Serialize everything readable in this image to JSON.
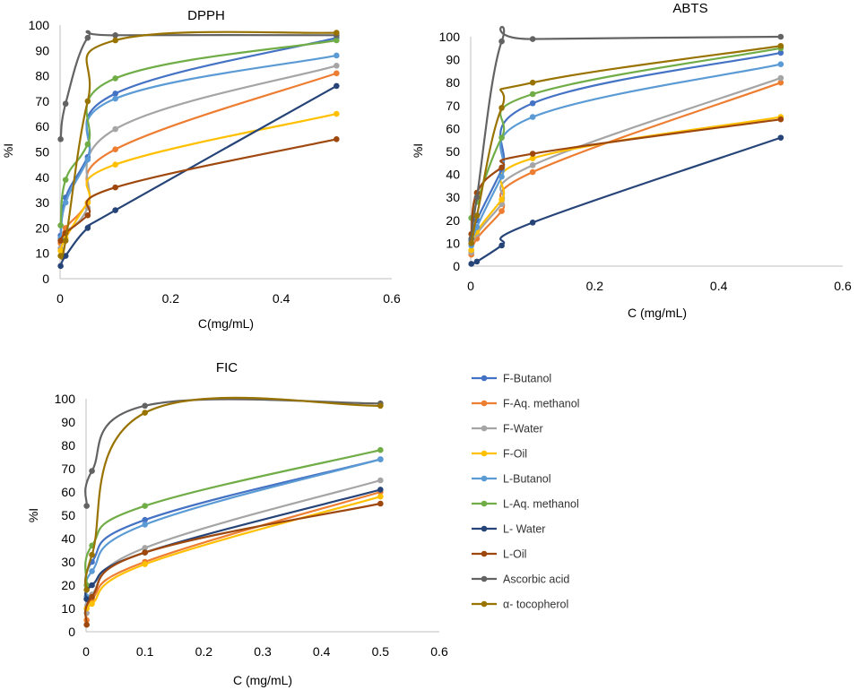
{
  "chart_data": [
    {
      "type": "scatter-smooth",
      "title": "DPPH",
      "xlabel": "C(mg/mL)",
      "ylabel": "%I",
      "xlim": [
        0,
        0.6
      ],
      "ylim": [
        0,
        100
      ],
      "xticks": [
        "0",
        "0.2",
        "0.4",
        "0.6"
      ],
      "yticks": [
        "0",
        "10",
        "20",
        "30",
        "40",
        "50",
        "60",
        "70",
        "80",
        "90",
        "100"
      ],
      "x": [
        0.001,
        0.01,
        0.05,
        0.1,
        0.5
      ],
      "series": [
        {
          "name": "F-Butanol",
          "values": [
            17,
            32,
            48,
            73,
            95
          ]
        },
        {
          "name": "F-Aq. methanol",
          "values": [
            14,
            20,
            30,
            51,
            81
          ]
        },
        {
          "name": "F-Water",
          "values": [
            12,
            18,
            28,
            59,
            84
          ]
        },
        {
          "name": "F-Oil",
          "values": [
            11,
            16,
            30,
            45,
            65
          ]
        },
        {
          "name": "L-Butanol",
          "values": [
            16,
            30,
            47,
            71,
            88
          ]
        },
        {
          "name": "L-Aq. methanol",
          "values": [
            21,
            39,
            53,
            79,
            94
          ]
        },
        {
          "name": "L- Water",
          "values": [
            5,
            9,
            20,
            27,
            76
          ]
        },
        {
          "name": "L-Oil",
          "values": [
            15,
            18,
            25,
            36,
            55
          ]
        },
        {
          "name": "Ascorbic acid",
          "values": [
            55,
            69,
            95,
            96,
            96
          ]
        },
        {
          "name": "α- tocopherol",
          "values": [
            9,
            15,
            70,
            94,
            97
          ]
        }
      ]
    },
    {
      "type": "scatter-smooth",
      "title": "ABTS",
      "xlabel": "C (mg/mL)",
      "ylabel": "%I",
      "xlim": [
        0,
        0.6
      ],
      "ylim": [
        0,
        100
      ],
      "xticks": [
        "0",
        "0.2",
        "0.4",
        "0.6"
      ],
      "yticks": [
        "0",
        "10",
        "20",
        "30",
        "40",
        "50",
        "60",
        "70",
        "80",
        "90",
        "100"
      ],
      "x": [
        0.001,
        0.01,
        0.05,
        0.1,
        0.5
      ],
      "series": [
        {
          "name": "F-Butanol",
          "values": [
            11,
            20,
            42,
            71,
            93
          ]
        },
        {
          "name": "F-Aq. methanol",
          "values": [
            5,
            12,
            24,
            41,
            80
          ]
        },
        {
          "name": "F-Water",
          "values": [
            6,
            14,
            27,
            44,
            82
          ]
        },
        {
          "name": "F-Oil",
          "values": [
            7,
            15,
            29,
            47,
            65
          ]
        },
        {
          "name": "L-Butanol",
          "values": [
            9,
            17,
            39,
            65,
            88
          ]
        },
        {
          "name": "L-Aq. methanol",
          "values": [
            21,
            28,
            56,
            75,
            95
          ]
        },
        {
          "name": "L- Water",
          "values": [
            1,
            2,
            9,
            19,
            56
          ]
        },
        {
          "name": "L-Oil",
          "values": [
            14,
            32,
            43,
            49,
            64
          ]
        },
        {
          "name": "Ascorbic acid",
          "values": [
            12,
            30,
            98,
            99,
            100
          ]
        },
        {
          "name": "α- tocopherol",
          "values": [
            10,
            22,
            69,
            80,
            96
          ]
        }
      ]
    },
    {
      "type": "scatter-smooth",
      "title": "FIC",
      "xlabel": "C (mg/mL)",
      "ylabel": "%I",
      "xlim": [
        0,
        0.6
      ],
      "ylim": [
        0,
        100
      ],
      "xticks": [
        "0",
        "0.1",
        "0.2",
        "0.3",
        "0.4",
        "0.5",
        "0.6"
      ],
      "yticks": [
        "0",
        "10",
        "20",
        "30",
        "40",
        "50",
        "60",
        "70",
        "80",
        "90",
        "100"
      ],
      "x": [
        0.001,
        0.01,
        0.1,
        0.5
      ],
      "series": [
        {
          "name": "F-Butanol",
          "values": [
            14,
            30,
            48,
            74
          ]
        },
        {
          "name": "F-Aq. methanol",
          "values": [
            5,
            14,
            30,
            60
          ]
        },
        {
          "name": "F-Water",
          "values": [
            8,
            16,
            36,
            65
          ]
        },
        {
          "name": "F-Oil",
          "values": [
            10,
            12,
            29,
            58
          ]
        },
        {
          "name": "L-Butanol",
          "values": [
            15,
            26,
            46,
            74
          ]
        },
        {
          "name": "L-Aq. methanol",
          "values": [
            20,
            37,
            54,
            78
          ]
        },
        {
          "name": "L- Water",
          "values": [
            14,
            20,
            34,
            61
          ]
        },
        {
          "name": "L-Oil",
          "values": [
            3,
            15,
            34,
            55
          ]
        },
        {
          "name": "Ascorbic acid",
          "values": [
            54,
            69,
            97,
            98
          ]
        },
        {
          "name": "α- tocopherol",
          "values": [
            18,
            33,
            94,
            97
          ]
        }
      ]
    }
  ],
  "legend": {
    "entries": [
      "F-Butanol",
      "F-Aq. methanol",
      "F-Water",
      "F-Oil",
      "L-Butanol",
      "L-Aq. methanol",
      "L- Water",
      "L-Oil",
      "Ascorbic acid",
      "α- tocopherol"
    ]
  },
  "colors": {
    "F-Butanol": "#4472C4",
    "F-Aq. methanol": "#ED7D31",
    "F-Water": "#A5A5A5",
    "F-Oil": "#FFC000",
    "L-Butanol": "#5B9BD5",
    "L-Aq. methanol": "#70AD47",
    "L- Water": "#264478",
    "L-Oil": "#9E480E",
    "Ascorbic acid": "#636363",
    "α- tocopherol": "#997300"
  }
}
